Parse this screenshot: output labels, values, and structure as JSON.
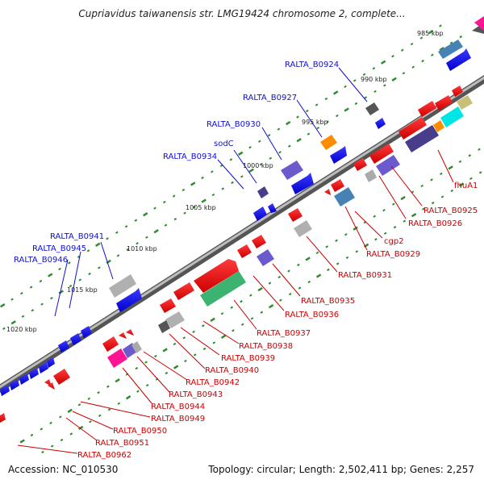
{
  "title": "Cupriavidus taiwanensis str. LMG19424 chromosome 2, complete...",
  "accession": "Accession: NC_010530",
  "topology": "Topology: circular; Length: 2,502,411 bp; Genes: 2,257",
  "colors": {
    "forward_gene": "#0000ee",
    "reverse_gene": "#ee0000",
    "label_blue": "#1010cc",
    "label_red": "#cc0000",
    "tick": "#2e8b2e",
    "backbone": "#888888"
  },
  "kbp_labels": [
    "985 kbp",
    "990 kbp",
    "995 kbp",
    "1000 kbp",
    "1005 kbp",
    "1010 kbp",
    "1015 kbp",
    "1020 kbp"
  ],
  "blue_labels": [
    "RALTA_B0924",
    "RALTA_B0927",
    "RALTA_B0930",
    "sodC",
    "RALTA_B0934",
    "RALTA_B0941",
    "RALTA_B0945",
    "RALTA_B0946"
  ],
  "red_labels": [
    "fhuA1",
    "RALTA_B0925",
    "RALTA_B0926",
    "cgp2",
    "RALTA_B0929",
    "RALTA_B0931",
    "RALTA_B0935",
    "RALTA_B0936",
    "RALTA_B0937",
    "RALTA_B0938",
    "RALTA_B0939",
    "RALTA_B0940",
    "RALTA_B0942",
    "RALTA_B0943",
    "RALTA_B0944",
    "RALTA_B0949",
    "RALTA_B0950",
    "RALTA_B0951",
    "RALTA_B0962"
  ]
}
